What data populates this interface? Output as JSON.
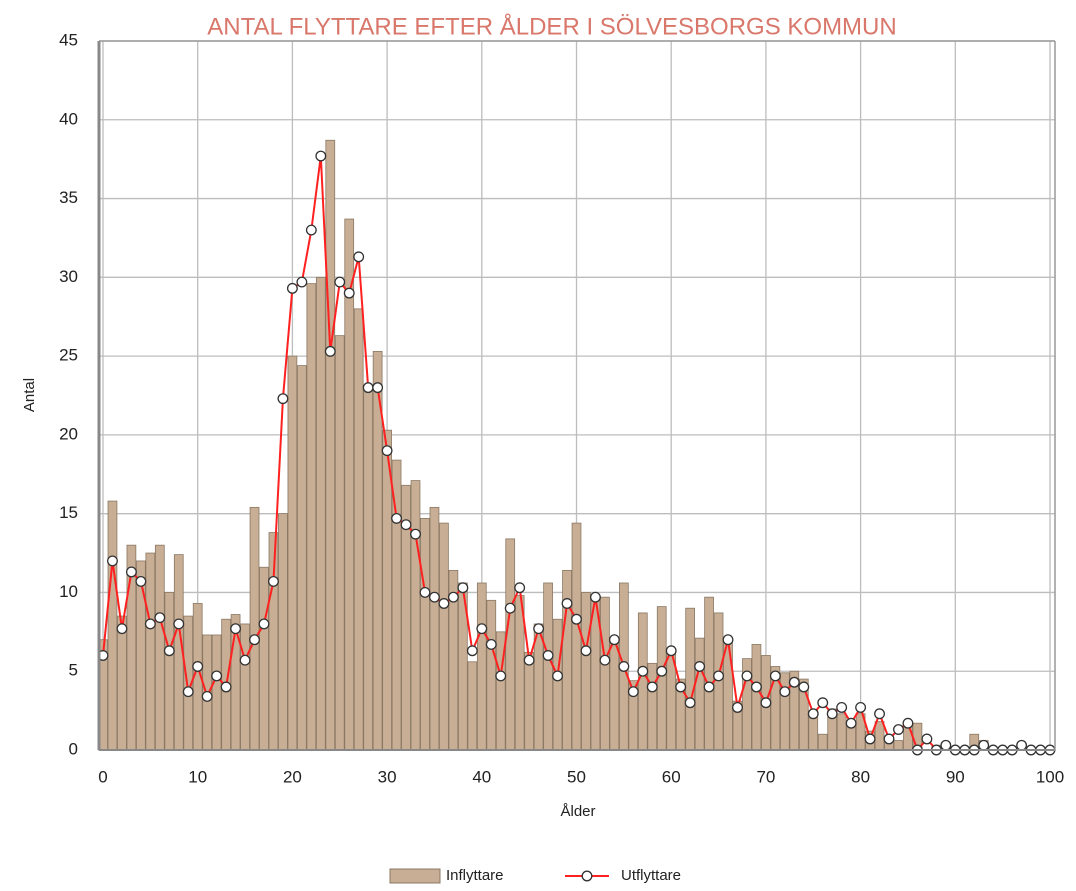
{
  "chart_data": {
    "type": "combo",
    "title": "ANTAL FLYTTARE EFTER ÅLDER I SÖLVESBORGS KOMMUN",
    "x_label": "Ålder",
    "y_label": "Antal",
    "x": [
      0,
      1,
      2,
      3,
      4,
      5,
      6,
      7,
      8,
      9,
      10,
      11,
      12,
      13,
      14,
      15,
      16,
      17,
      18,
      19,
      20,
      21,
      22,
      23,
      24,
      25,
      26,
      27,
      28,
      29,
      30,
      31,
      32,
      33,
      34,
      35,
      36,
      37,
      38,
      39,
      40,
      41,
      42,
      43,
      44,
      45,
      46,
      47,
      48,
      49,
      50,
      51,
      52,
      53,
      54,
      55,
      56,
      57,
      58,
      59,
      60,
      61,
      62,
      63,
      64,
      65,
      66,
      67,
      68,
      69,
      70,
      71,
      72,
      73,
      74,
      75,
      76,
      77,
      78,
      79,
      80,
      81,
      82,
      83,
      84,
      85,
      86,
      87,
      88,
      89,
      90,
      91,
      92,
      93,
      94,
      95,
      96,
      97,
      98,
      99,
      100
    ],
    "series": [
      {
        "name": "Inflyttare",
        "type": "bar",
        "color": "#c8ae94",
        "values": [
          7,
          15.8,
          8.5,
          13,
          12,
          12.5,
          13,
          10,
          12.4,
          8.5,
          9.3,
          7.3,
          7.3,
          8.3,
          8.6,
          8,
          15.4,
          11.6,
          13.8,
          15,
          25,
          24.4,
          29.6,
          30,
          38.7,
          26.3,
          33.7,
          28,
          23,
          25.3,
          20.3,
          18.4,
          16.8,
          17.1,
          14.7,
          15.4,
          14.4,
          11.4,
          10.6,
          5.6,
          10.6,
          9.5,
          7.5,
          13.4,
          9.8,
          6.2,
          8,
          10.6,
          8.3,
          11.4,
          14.4,
          10,
          9.6,
          9.7,
          7,
          10.6,
          4.4,
          8.7,
          5.5,
          9.1,
          6.2,
          4.5,
          9,
          7.1,
          9.7,
          8.7,
          7,
          3.1,
          5.8,
          6.7,
          6,
          5.3,
          4.9,
          5,
          4.5,
          2.5,
          1,
          2.6,
          2.3,
          1.8,
          2.3,
          1.2,
          1.8,
          0.9,
          0.6,
          1.5,
          1.7,
          0,
          0.3,
          0.1,
          0,
          0,
          1,
          0.6,
          0,
          0,
          0,
          0,
          0,
          0,
          0
        ]
      },
      {
        "name": "Utflyttare",
        "type": "line",
        "color": "#ff2020",
        "values": [
          6,
          12,
          7.7,
          11.3,
          10.7,
          8,
          8.4,
          6.3,
          8,
          3.7,
          5.3,
          3.4,
          4.7,
          4,
          7.7,
          5.7,
          7,
          8,
          10.7,
          22.3,
          29.3,
          29.7,
          33,
          37.7,
          25.3,
          29.7,
          29,
          31.3,
          23,
          23,
          19,
          14.7,
          14.3,
          13.7,
          10,
          9.7,
          9.3,
          9.7,
          10.3,
          6.3,
          7.7,
          6.7,
          4.7,
          9,
          10.3,
          5.7,
          7.7,
          6,
          4.7,
          9.3,
          8.3,
          6.3,
          9.7,
          5.7,
          7,
          5.3,
          3.7,
          5,
          4,
          5,
          6.3,
          4,
          3,
          5.3,
          4,
          4.7,
          7,
          2.7,
          4.7,
          4,
          3,
          4.7,
          3.7,
          4.3,
          4,
          2.3,
          3,
          2.3,
          2.7,
          1.7,
          2.7,
          0.7,
          2.3,
          0.7,
          1.3,
          1.7,
          0,
          0.7,
          0,
          0.3,
          0,
          0,
          0,
          0.3,
          0,
          0,
          0,
          0.3,
          0,
          0,
          0
        ]
      }
    ],
    "xlim": [
      0,
      100
    ],
    "xticks": [
      0,
      10,
      20,
      30,
      40,
      50,
      60,
      70,
      80,
      90,
      100
    ],
    "ylim": [
      0,
      45
    ],
    "yticks": [
      0,
      5,
      10,
      15,
      20,
      25,
      30,
      35,
      40,
      45
    ],
    "grid": true,
    "legend": "bottom"
  }
}
